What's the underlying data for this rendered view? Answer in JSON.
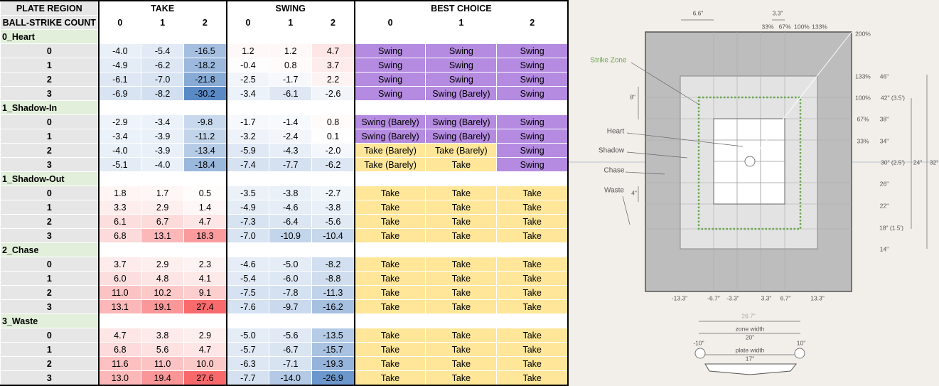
{
  "table": {
    "region_header": "PLATE REGION",
    "count_header": "BALL-STRIKE COUNT",
    "sections": [
      {
        "label": "TAKE",
        "counts": [
          0,
          1,
          2
        ]
      },
      {
        "label": "SWING",
        "counts": [
          0,
          1,
          2
        ]
      },
      {
        "label": "BEST CHOICE",
        "counts": [
          0,
          1,
          2
        ]
      }
    ],
    "heat_colors": {
      "positive": "#f8696b",
      "negative": "#5a8ac6",
      "zero": "#ffffff"
    },
    "choice_colors": {
      "Swing": "#b48be0",
      "Take": "#ffe699"
    },
    "groups": [
      {
        "name": "0_Heart",
        "rows": [
          {
            "balls": 0,
            "take": [
              "-4.0",
              "-5.4",
              "-16.5"
            ],
            "swing": [
              "1.2",
              "1.2",
              "4.7"
            ],
            "best": [
              "Swing",
              "Swing",
              "Swing"
            ]
          },
          {
            "balls": 1,
            "take": [
              "-4.9",
              "-6.2",
              "-18.2"
            ],
            "swing": [
              "-0.4",
              "0.8",
              "3.7"
            ],
            "best": [
              "Swing",
              "Swing",
              "Swing"
            ]
          },
          {
            "balls": 2,
            "take": [
              "-6.1",
              "-7.0",
              "-21.8"
            ],
            "swing": [
              "-2.5",
              "-1.7",
              "2.2"
            ],
            "best": [
              "Swing",
              "Swing",
              "Swing"
            ]
          },
          {
            "balls": 3,
            "take": [
              "-6.9",
              "-8.2",
              "-30.2"
            ],
            "swing": [
              "-3.4",
              "-6.1",
              "-2.6"
            ],
            "best": [
              "Swing",
              "Swing (Barely)",
              "Swing"
            ]
          }
        ]
      },
      {
        "name": "1_Shadow-In",
        "rows": [
          {
            "balls": 0,
            "take": [
              "-2.9",
              "-3.4",
              "-9.8"
            ],
            "swing": [
              "-1.7",
              "-1.4",
              "0.8"
            ],
            "best": [
              "Swing (Barely)",
              "Swing (Barely)",
              "Swing"
            ]
          },
          {
            "balls": 1,
            "take": [
              "-3.4",
              "-3.9",
              "-11.2"
            ],
            "swing": [
              "-3.2",
              "-2.4",
              "0.1"
            ],
            "best": [
              "Swing (Barely)",
              "Swing (Barely)",
              "Swing"
            ]
          },
          {
            "balls": 2,
            "take": [
              "-4.0",
              "-3.9",
              "-13.4"
            ],
            "swing": [
              "-5.9",
              "-4.3",
              "-2.0"
            ],
            "best": [
              "Take (Barely)",
              "Take (Barely)",
              "Swing"
            ]
          },
          {
            "balls": 3,
            "take": [
              "-5.1",
              "-4.0",
              "-18.4"
            ],
            "swing": [
              "-7.4",
              "-7.7",
              "-6.2"
            ],
            "best": [
              "Take (Barely)",
              "Take",
              "Swing"
            ]
          }
        ]
      },
      {
        "name": "1_Shadow-Out",
        "rows": [
          {
            "balls": 0,
            "take": [
              "1.8",
              "1.7",
              "0.5"
            ],
            "swing": [
              "-3.5",
              "-3.8",
              "-2.7"
            ],
            "best": [
              "Take",
              "Take",
              "Take"
            ]
          },
          {
            "balls": 1,
            "take": [
              "3.3",
              "2.9",
              "1.4"
            ],
            "swing": [
              "-4.9",
              "-4.6",
              "-3.8"
            ],
            "best": [
              "Take",
              "Take",
              "Take"
            ]
          },
          {
            "balls": 2,
            "take": [
              "6.1",
              "6.7",
              "4.7"
            ],
            "swing": [
              "-7.3",
              "-6.4",
              "-5.6"
            ],
            "best": [
              "Take",
              "Take",
              "Take"
            ]
          },
          {
            "balls": 3,
            "take": [
              "6.8",
              "13.1",
              "18.3"
            ],
            "swing": [
              "-7.0",
              "-10.9",
              "-10.4"
            ],
            "best": [
              "Take",
              "Take",
              "Take"
            ]
          }
        ]
      },
      {
        "name": "2_Chase",
        "rows": [
          {
            "balls": 0,
            "take": [
              "3.7",
              "2.9",
              "2.3"
            ],
            "swing": [
              "-4.6",
              "-5.0",
              "-8.2"
            ],
            "best": [
              "Take",
              "Take",
              "Take"
            ]
          },
          {
            "balls": 1,
            "take": [
              "6.0",
              "4.8",
              "4.1"
            ],
            "swing": [
              "-5.4",
              "-6.0",
              "-8.8"
            ],
            "best": [
              "Take",
              "Take",
              "Take"
            ]
          },
          {
            "balls": 2,
            "take": [
              "11.0",
              "10.2",
              "9.1"
            ],
            "swing": [
              "-7.5",
              "-7.8",
              "-11.3"
            ],
            "best": [
              "Take",
              "Take",
              "Take"
            ]
          },
          {
            "balls": 3,
            "take": [
              "13.1",
              "19.1",
              "27.4"
            ],
            "swing": [
              "-7.6",
              "-9.7",
              "-16.2"
            ],
            "best": [
              "Take",
              "Take",
              "Take"
            ]
          }
        ]
      },
      {
        "name": "3_Waste",
        "rows": [
          {
            "balls": 0,
            "take": [
              "4.7",
              "3.8",
              "2.9"
            ],
            "swing": [
              "-5.0",
              "-5.6",
              "-13.5"
            ],
            "best": [
              "Take",
              "Take",
              "Take"
            ]
          },
          {
            "balls": 1,
            "take": [
              "6.8",
              "5.6",
              "4.7"
            ],
            "swing": [
              "-5.7",
              "-6.7",
              "-15.7"
            ],
            "best": [
              "Take",
              "Take",
              "Take"
            ]
          },
          {
            "balls": 2,
            "take": [
              "11.6",
              "11.0",
              "10.0"
            ],
            "swing": [
              "-6.3",
              "-7.1",
              "-19.3"
            ],
            "best": [
              "Take",
              "Take",
              "Take"
            ]
          },
          {
            "balls": 3,
            "take": [
              "13.0",
              "19.4",
              "27.6"
            ],
            "swing": [
              "-7.7",
              "-14.0",
              "-26.9"
            ],
            "best": [
              "Take",
              "Take",
              "Take"
            ]
          }
        ]
      }
    ]
  },
  "diagram": {
    "labels": [
      "6.6\"",
      "3.3\"",
      "33%",
      "67%",
      "100%",
      "133%",
      "200%",
      "Strike Zone",
      "8\"",
      "133%",
      "46\"",
      "100%",
      "42\" (3.5')",
      "67%",
      "38\"",
      "Heart",
      "33%",
      "34\"",
      "Shadow",
      "30\" (2.5')",
      "24\"",
      "32\"",
      "Chase",
      "26\"",
      "Waste",
      "4\"",
      "22\"",
      "18\" (1.5')",
      "14\"",
      "-13.3\"",
      "-6.7\"",
      "-3.3\"",
      "3.3\"",
      "6.7\"",
      "13.3\"",
      "26.7\"",
      "zone width",
      "20\"",
      "-10\"",
      "10\"",
      "plate width",
      "17\""
    ]
  }
}
